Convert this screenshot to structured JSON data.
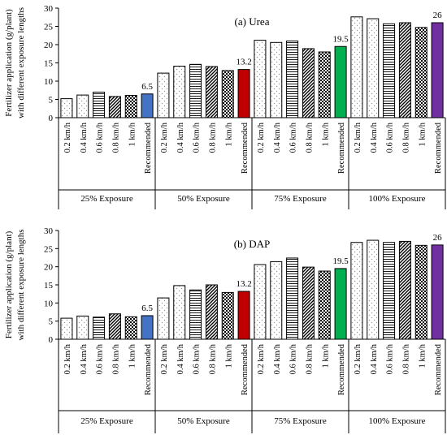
{
  "chart_data": [
    {
      "type": "bar",
      "title": "(a) Urea",
      "ylabel": "Fertilizer application (g/plant)\nwith different exposure lengths",
      "ylim": [
        0,
        30
      ],
      "yticks": [
        0,
        5,
        10,
        15,
        20,
        25,
        30
      ],
      "groups": [
        {
          "name": "25% Exposure",
          "categories": [
            "0.2 km/h",
            "0.4 km/h",
            "0.6 km/h",
            "0.8 km/h",
            "1 km/h",
            "Recommended"
          ],
          "values": [
            5.2,
            6.2,
            7.0,
            5.8,
            6.1,
            6.5
          ],
          "label": "6.5"
        },
        {
          "name": "50% Exposure",
          "categories": [
            "0.2 km/h",
            "0.4 km/h",
            "0.6 km/h",
            "0.8 km/h",
            "1 km/h",
            "Recommended"
          ],
          "values": [
            12.2,
            14.1,
            14.6,
            14.0,
            12.9,
            13.2
          ],
          "label": "13.2"
        },
        {
          "name": "75% Exposure",
          "categories": [
            "0.2 km/h",
            "0.4 km/h",
            "0.6 km/h",
            "0.8 km/h",
            "1 km/h",
            "Recommended"
          ],
          "values": [
            21.2,
            20.6,
            21.0,
            18.9,
            18.0,
            19.5
          ],
          "label": "19.5"
        },
        {
          "name": "100% Exposure",
          "categories": [
            "0.2 km/h",
            "0.4 km/h",
            "0.6 km/h",
            "0.8 km/h",
            "1 km/h",
            "Recommended"
          ],
          "values": [
            27.6,
            27.1,
            25.7,
            26.0,
            24.7,
            26.0
          ],
          "label": "26"
        }
      ]
    },
    {
      "type": "bar",
      "title": "(b) DAP",
      "ylabel": "Fertilizer application (g/plant)\nwith different exposure lengths",
      "ylim": [
        0,
        30
      ],
      "yticks": [
        0,
        5,
        10,
        15,
        20,
        25,
        30
      ],
      "groups": [
        {
          "name": "25% Exposure",
          "categories": [
            "0.2 km/h",
            "0.4 km/h",
            "0.6 km/h",
            "0.8 km/h",
            "1 km/h",
            "Recommended"
          ],
          "values": [
            5.8,
            6.4,
            6.1,
            7.0,
            6.2,
            6.5
          ],
          "label": "6.5"
        },
        {
          "name": "50% Exposure",
          "categories": [
            "0.2 km/h",
            "0.4 km/h",
            "0.6 km/h",
            "0.8 km/h",
            "1 km/h",
            "Recommended"
          ],
          "values": [
            11.4,
            14.8,
            13.6,
            15.0,
            12.9,
            13.2
          ],
          "label": "13.2"
        },
        {
          "name": "75% Exposure",
          "categories": [
            "0.2 km/h",
            "0.4 km/h",
            "0.6 km/h",
            "0.8 km/h",
            "1 km/h",
            "Recommended"
          ],
          "values": [
            20.6,
            21.4,
            22.4,
            19.9,
            18.8,
            19.5
          ],
          "label": "19.5"
        },
        {
          "name": "100% Exposure",
          "categories": [
            "0.2 km/h",
            "0.4 km/h",
            "0.6 km/h",
            "0.8 km/h",
            "1 km/h",
            "Recommended"
          ],
          "values": [
            26.7,
            27.3,
            26.7,
            27.0,
            25.9,
            26.0
          ],
          "label": "26"
        }
      ]
    }
  ],
  "colors": {
    "recommended": [
      "#4472C4",
      "#C00000",
      "#00B050",
      "#7030A0"
    ],
    "bar_stroke": "#000000",
    "dots": "#aaaaaa"
  }
}
